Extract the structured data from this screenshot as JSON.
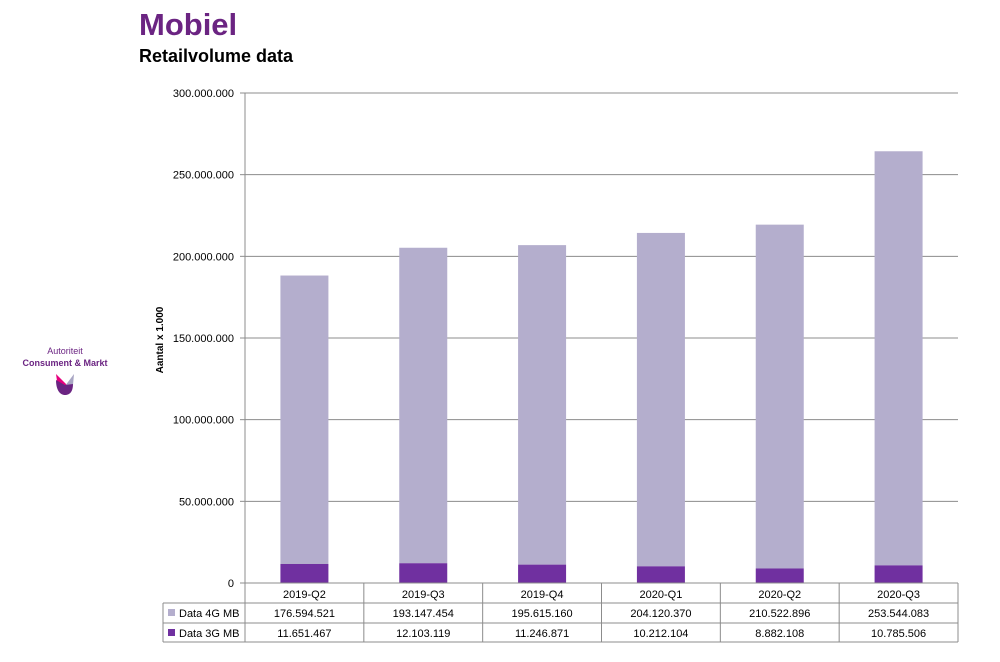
{
  "header": {
    "title": "Mobiel",
    "subtitle": "Retailvolume data"
  },
  "logo": {
    "line1": "Autoriteit",
    "line2": "Consument & Markt"
  },
  "colors": {
    "title": "#6b2482",
    "series_4g": "#b4aecd",
    "series_3g": "#7030a0",
    "logo_purple": "#6b2482",
    "logo_pink": "#e6007e",
    "logo_grey": "#a9a6c4"
  },
  "chart_data": {
    "type": "bar",
    "stacked": true,
    "categories": [
      "2019-Q2",
      "2019-Q3",
      "2019-Q4",
      "2020-Q1",
      "2020-Q2",
      "2020-Q3"
    ],
    "series": [
      {
        "name": "Data 3G MB",
        "values": [
          11651467,
          12103119,
          11246871,
          10212104,
          8882108,
          10785506
        ],
        "labels": [
          "11.651.467",
          "12.103.119",
          "11.246.871",
          "10.212.104",
          "8.882.108",
          "10.785.506"
        ]
      },
      {
        "name": "Data 4G MB",
        "values": [
          176594521,
          193147454,
          195615160,
          204120370,
          210522896,
          253544083
        ],
        "labels": [
          "176.594.521",
          "193.147.454",
          "195.615.160",
          "204.120.370",
          "210.522.896",
          "253.544.083"
        ]
      }
    ],
    "ylabel": "Aantal x 1.000",
    "xlabel": "",
    "ylim": [
      0,
      300000000
    ],
    "yticks": [
      0,
      50000000,
      100000000,
      150000000,
      200000000,
      250000000,
      300000000
    ],
    "ytick_labels": [
      "0",
      "50.000.000",
      "100.000.000",
      "150.000.000",
      "200.000.000",
      "250.000.000",
      "300.000.000"
    ],
    "grid": true,
    "legend": "data-table-below"
  }
}
